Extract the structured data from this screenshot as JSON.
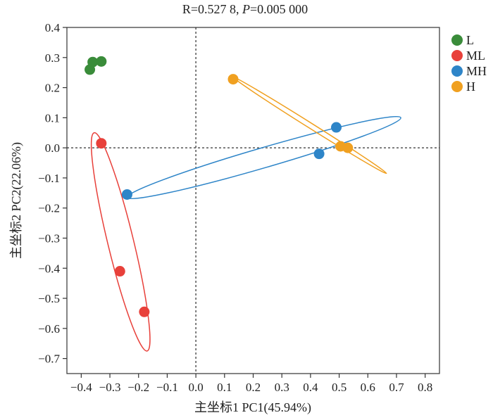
{
  "chart_data": {
    "type": "scatter",
    "title_main": "R=0.527 8, ",
    "title_p_letter": "P",
    "title_p_value": "=0.005 000",
    "xlabel": "主坐标1 PC1(45.94%)",
    "ylabel": "主坐标2 PC2(22.06%)",
    "xlim": [
      -0.45,
      0.85
    ],
    "ylim": [
      -0.75,
      0.4
    ],
    "xticks": [
      -0.4,
      -0.3,
      -0.2,
      -0.1,
      0.0,
      0.1,
      0.2,
      0.3,
      0.4,
      0.5,
      0.6,
      0.7,
      0.8
    ],
    "yticks": [
      0.4,
      0.3,
      0.2,
      0.1,
      0.0,
      -0.1,
      -0.2,
      -0.3,
      -0.4,
      -0.5,
      -0.6,
      -0.7
    ],
    "reference_lines": {
      "x": 0,
      "y": 0
    },
    "legend_position": "right",
    "series": [
      {
        "name": "L",
        "color": "#3a8c3a",
        "points": [
          [
            -0.37,
            0.26
          ],
          [
            -0.36,
            0.285
          ],
          [
            -0.33,
            0.287
          ]
        ],
        "ellipse": null
      },
      {
        "name": "ML",
        "color": "#e8403a",
        "points": [
          [
            -0.33,
            0.015
          ],
          [
            -0.265,
            -0.41
          ],
          [
            -0.18,
            -0.545
          ]
        ],
        "ellipse": {
          "p1": [
            -0.355,
            0.05
          ],
          "p2": [
            -0.17,
            -0.675
          ],
          "width": 0.09
        }
      },
      {
        "name": "MH",
        "color": "#2e85c8",
        "points": [
          [
            -0.24,
            -0.155
          ],
          [
            0.43,
            -0.02
          ],
          [
            0.49,
            0.068
          ]
        ],
        "ellipse": {
          "p1": [
            -0.24,
            -0.165
          ],
          "p2": [
            0.715,
            0.1
          ],
          "width": 0.07
        }
      },
      {
        "name": "H",
        "color": "#f0a020",
        "points": [
          [
            0.13,
            0.228
          ],
          [
            0.505,
            0.005
          ],
          [
            0.53,
            0
          ]
        ],
        "ellipse": {
          "p1": [
            0.13,
            0.235
          ],
          "p2": [
            0.665,
            -0.085
          ],
          "width": 0.018
        }
      }
    ]
  }
}
